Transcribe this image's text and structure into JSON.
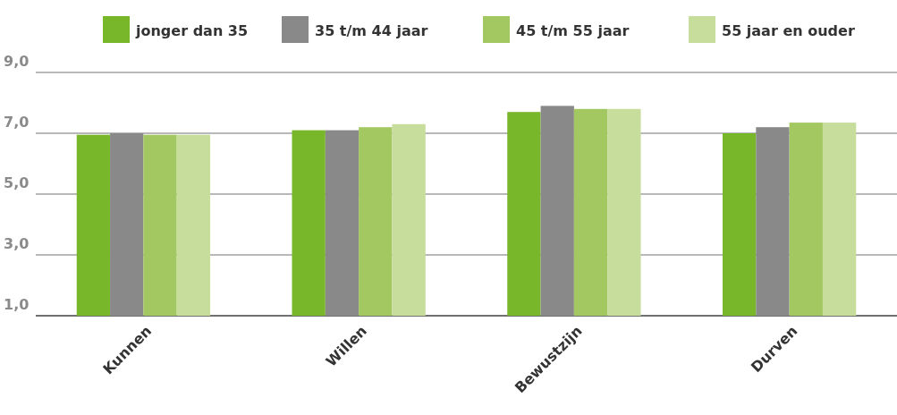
{
  "chart_data": {
    "type": "bar",
    "categories": [
      "Kunnen",
      "Willen",
      "Bewustzijn",
      "Durven"
    ],
    "series": [
      {
        "name": "jonger dan 35",
        "color": "#78b72a",
        "values": [
          6.95,
          7.1,
          7.7,
          7.0
        ]
      },
      {
        "name": "35 t/m 44 jaar",
        "color": "#898989",
        "values": [
          7.0,
          7.1,
          7.9,
          7.2
        ]
      },
      {
        "name": "45 t/m 55 jaar",
        "color": "#a3c862",
        "values": [
          6.95,
          7.2,
          7.8,
          7.35
        ]
      },
      {
        "name": "55 jaar en ouder",
        "color": "#c6dd9c",
        "values": [
          6.95,
          7.3,
          7.8,
          7.35
        ]
      }
    ],
    "ylim": [
      1,
      9
    ],
    "yticks": [
      {
        "value": 1,
        "label": "1,0"
      },
      {
        "value": 3,
        "label": "3,0"
      },
      {
        "value": 5,
        "label": "5,0"
      },
      {
        "value": 7,
        "label": "7,0"
      },
      {
        "value": 9,
        "label": "9,0"
      }
    ],
    "grid": "y",
    "legend": "top right"
  }
}
